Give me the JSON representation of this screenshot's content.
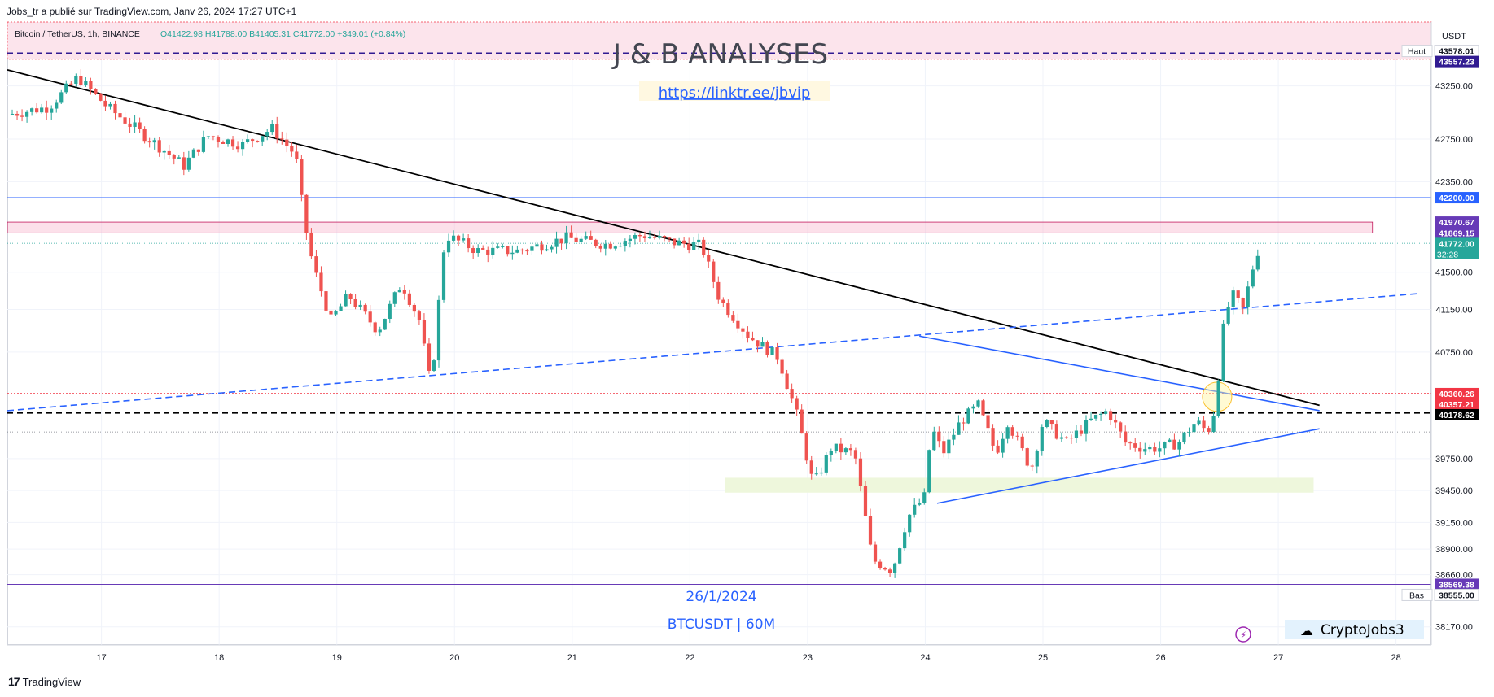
{
  "caption": "Jobs_tr a publié sur TradingView.com, Janv 26, 2024 17:27 UTC+1",
  "footer": {
    "logo": "17",
    "brand": "TradingView"
  },
  "legend": {
    "symbol": "Bitcoin / TetherUS, 1h, BINANCE",
    "ohlc": "O41422.98  H41788.00  B41405.31  C41772.00  +349.01 (+0.84%)"
  },
  "currency": "USDT",
  "overlay": {
    "banner_title": "J & B ANALYSES",
    "link": "https://linktr.ee/jbvip",
    "date": "26/1/2024",
    "pair_tf": "BTCUSDT | 60M",
    "watermark": "CryptoJobs3",
    "flash_icon": "lightning-icon"
  },
  "colors": {
    "up": "#26a69a",
    "down": "#ef5350",
    "blue_line": "#2962ff",
    "navy_dash": "#311b92",
    "purple_tag": "#673ab7",
    "red_tag": "#f23645",
    "black": "#000000",
    "pink_zone": "#fce4ec",
    "green_zone": "#eef7dc"
  },
  "chart_data": {
    "type": "candlestick",
    "title": "Bitcoin / TetherUS, 1h, BINANCE",
    "xlabel": "",
    "ylabel": "",
    "x_ticks": [
      "17",
      "18",
      "19",
      "20",
      "21",
      "22",
      "23",
      "24",
      "25",
      "26",
      "27",
      "28"
    ],
    "y_ticks": [
      "43250.00",
      "42750.00",
      "42350.00",
      "41500.00",
      "41150.00",
      "40750.00",
      "39750.00",
      "39450.00",
      "39150.00",
      "38900.00",
      "38660.00",
      "38170.00"
    ],
    "ylim": [
      38000,
      43850
    ],
    "xlim": [
      16.2,
      28.3
    ],
    "grid": true,
    "anchors": [
      [
        16.2,
        42980
      ],
      [
        16.55,
        43050
      ],
      [
        16.8,
        43330
      ],
      [
        17.05,
        43050
      ],
      [
        17.35,
        42800
      ],
      [
        17.7,
        42500
      ],
      [
        17.9,
        42780
      ],
      [
        18.2,
        42700
      ],
      [
        18.45,
        42850
      ],
      [
        18.65,
        42600
      ],
      [
        18.72,
        42000
      ],
      [
        18.8,
        41550
      ],
      [
        18.95,
        41050
      ],
      [
        19.1,
        41280
      ],
      [
        19.35,
        40950
      ],
      [
        19.55,
        41400
      ],
      [
        19.7,
        41050
      ],
      [
        19.8,
        40420
      ],
      [
        19.92,
        41850
      ],
      [
        20.2,
        41700
      ],
      [
        20.55,
        41700
      ],
      [
        20.95,
        41820
      ],
      [
        21.3,
        41760
      ],
      [
        21.6,
        41850
      ],
      [
        21.85,
        41780
      ],
      [
        22.1,
        41750
      ],
      [
        22.25,
        41250
      ],
      [
        22.5,
        40900
      ],
      [
        22.75,
        40700
      ],
      [
        22.9,
        40200
      ],
      [
        23.05,
        39500
      ],
      [
        23.2,
        39850
      ],
      [
        23.4,
        39800
      ],
      [
        23.55,
        38800
      ],
      [
        23.72,
        38700
      ],
      [
        23.85,
        39200
      ],
      [
        24.0,
        39400
      ],
      [
        24.05,
        40050
      ],
      [
        24.15,
        39800
      ],
      [
        24.3,
        40100
      ],
      [
        24.45,
        40250
      ],
      [
        24.6,
        39800
      ],
      [
        24.7,
        40100
      ],
      [
        24.9,
        39650
      ],
      [
        25.0,
        40100
      ],
      [
        25.2,
        39900
      ],
      [
        25.4,
        40100
      ],
      [
        25.55,
        40200
      ],
      [
        25.7,
        39900
      ],
      [
        25.85,
        39850
      ],
      [
        26.0,
        39850
      ],
      [
        26.15,
        39900
      ],
      [
        26.3,
        40100
      ],
      [
        26.4,
        40000
      ],
      [
        26.47,
        40250
      ],
      [
        26.52,
        40900
      ],
      [
        26.6,
        41300
      ],
      [
        26.7,
        41150
      ],
      [
        26.8,
        41620
      ],
      [
        26.85,
        41772
      ]
    ],
    "levels": [
      {
        "label": "43578.01",
        "value": 43578.01,
        "note": "Haut"
      },
      {
        "label": "43557.23",
        "value": 43557.23,
        "style": "navy-dashed"
      },
      {
        "label": "42200.00",
        "value": 42200.0,
        "style": "blue"
      },
      {
        "label": "41970.67",
        "value": 41970.67,
        "style": "purple"
      },
      {
        "label": "41869.15",
        "value": 41869.15,
        "style": "purple"
      },
      {
        "label": "41772.00",
        "value": 41772.0,
        "style": "last",
        "countdown": "32:28"
      },
      {
        "label": "40360.26",
        "value": 40360.26,
        "style": "red-dotted"
      },
      {
        "label": "40357.21",
        "value": 40357.21,
        "style": "red"
      },
      {
        "label": "40178.62",
        "value": 40178.62,
        "style": "black-dashed"
      },
      {
        "label": "38569.38",
        "value": 38569.38,
        "style": "purple"
      },
      {
        "label": "38555.00",
        "value": 38555.0,
        "note": "Bas"
      }
    ],
    "annotations": {
      "banner_zone": [
        43500,
        43850
      ],
      "pink_zone": [
        41869.15,
        41970.67
      ],
      "green_zone": [
        39430,
        39570
      ],
      "black_trendline": [
        [
          16.2,
          43400
        ],
        [
          27.35,
          40250
        ]
      ],
      "blue_dashed_trendline": [
        [
          16.2,
          40200
        ],
        [
          28.2,
          41300
        ]
      ],
      "triangle_upper": [
        [
          23.95,
          40900
        ],
        [
          27.35,
          40200
        ]
      ],
      "triangle_lower": [
        [
          24.1,
          39330
        ],
        [
          27.35,
          40030
        ]
      ]
    }
  }
}
